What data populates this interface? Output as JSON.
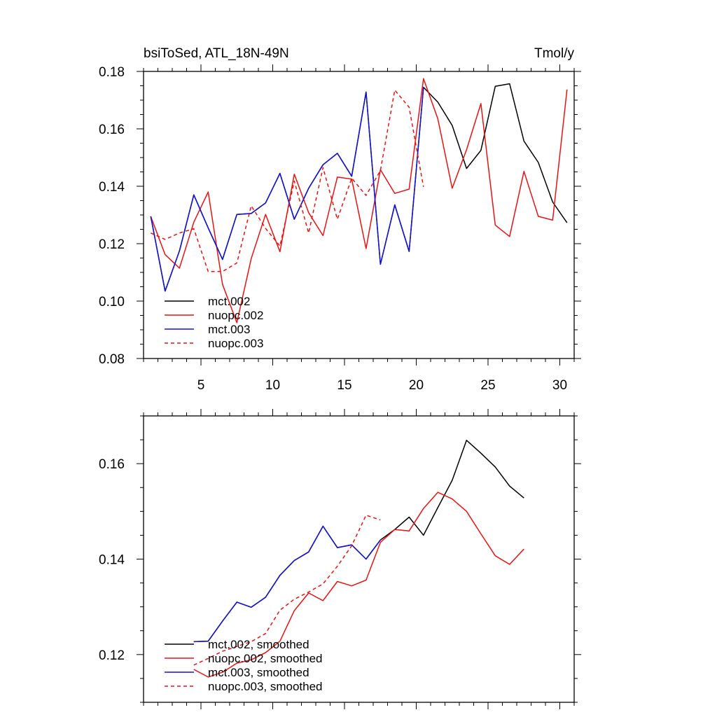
{
  "title_left": "bsiToSed, ATL_18N-49N",
  "title_right": "Tmol/y",
  "chart_data": [
    {
      "type": "line",
      "xlim": [
        1,
        31
      ],
      "ylim": [
        0.08,
        0.18
      ],
      "x_ticks": [
        5,
        10,
        15,
        20,
        25,
        30
      ],
      "x_tick_labels": [
        "5",
        "10",
        "15",
        "20",
        "25",
        "30"
      ],
      "y_ticks": [
        0.08,
        0.1,
        0.12,
        0.14,
        0.16,
        0.18
      ],
      "y_tick_labels": [
        "0.08",
        "0.10",
        "0.12",
        "0.14",
        "0.16",
        "0.18"
      ],
      "legend": "lower-left",
      "series": [
        {
          "name": "mct.002",
          "color": "#000000",
          "dash": "solid",
          "x": [
            1.5,
            2.5,
            3.5,
            4.5,
            5.5,
            6.5,
            7.5,
            8.5,
            9.5,
            10.5,
            11.5,
            12.5,
            13.5,
            14.5,
            15.5,
            16.5,
            17.5,
            18.5,
            19.5,
            20.5,
            21.5,
            22.5,
            23.5,
            24.5,
            25.5,
            26.5,
            27.5,
            28.5,
            29.5,
            30.5
          ],
          "y": [
            0.1295,
            0.1035,
            0.1175,
            0.137,
            0.1255,
            0.1145,
            0.1302,
            0.1305,
            0.1342,
            0.1445,
            0.1285,
            0.1393,
            0.1475,
            0.1515,
            0.1435,
            0.1728,
            0.1128,
            0.1335,
            0.1173,
            0.1745,
            0.1693,
            0.1612,
            0.1462,
            0.1525,
            0.1748,
            0.1757,
            0.1557,
            0.1483,
            0.1345,
            0.1273
          ]
        },
        {
          "name": "nuopc.002",
          "color": "#ee1111",
          "dash": "solid",
          "x": [
            1.5,
            2.5,
            3.5,
            4.5,
            5.5,
            6.5,
            7.5,
            8.5,
            9.5,
            10.5,
            11.5,
            12.5,
            13.5,
            14.5,
            15.5,
            16.5,
            17.5,
            18.5,
            19.5,
            20.5,
            21.5,
            22.5,
            23.5,
            24.5,
            25.5,
            26.5,
            27.5,
            28.5,
            29.5,
            30.5
          ],
          "y": [
            0.1295,
            0.1162,
            0.1115,
            0.1275,
            0.138,
            0.1058,
            0.0925,
            0.1148,
            0.1302,
            0.1172,
            0.1442,
            0.1308,
            0.1228,
            0.1432,
            0.1425,
            0.1183,
            0.1458,
            0.1375,
            0.139,
            0.1775,
            0.1635,
            0.1393,
            0.1527,
            0.1688,
            0.1265,
            0.1225,
            0.1452,
            0.1295,
            0.1282,
            0.1737
          ]
        },
        {
          "name": "mct.003",
          "color": "#1111dd",
          "dash": "solid",
          "x": [
            1.5,
            2.5,
            3.5,
            4.5,
            5.5,
            6.5,
            7.5,
            8.5,
            9.5,
            10.5,
            11.5,
            12.5,
            13.5,
            14.5,
            15.5,
            16.5,
            17.5,
            18.5,
            19.5,
            20.5
          ],
          "y": [
            0.1295,
            0.1035,
            0.1175,
            0.137,
            0.1255,
            0.1145,
            0.1302,
            0.1305,
            0.1342,
            0.1445,
            0.1285,
            0.1393,
            0.1475,
            0.1515,
            0.1435,
            0.1728,
            0.1128,
            0.1335,
            0.1173,
            0.1745
          ]
        },
        {
          "name": "nuopc.003",
          "color": "#ee1111",
          "dash": "dashed",
          "x": [
            1.5,
            2.5,
            3.5,
            4.5,
            5.5,
            6.5,
            7.5,
            8.5,
            9.5,
            10.5,
            11.5,
            12.5,
            13.5,
            14.5,
            15.5,
            16.5,
            17.5,
            18.5,
            19.5,
            20.5
          ],
          "y": [
            0.1237,
            0.1215,
            0.1237,
            0.1252,
            0.1103,
            0.1103,
            0.1133,
            0.1332,
            0.1253,
            0.1192,
            0.1418,
            0.1237,
            0.1465,
            0.1285,
            0.1428,
            0.1368,
            0.1455,
            0.1735,
            0.1675,
            0.1398
          ]
        }
      ]
    },
    {
      "type": "line",
      "xlim": [
        1,
        31
      ],
      "ylim": [
        0.11,
        0.17
      ],
      "x_ticks": [
        5,
        10,
        15,
        20,
        25,
        30
      ],
      "x_tick_labels": [],
      "y_ticks": [
        0.12,
        0.14,
        0.16
      ],
      "y_tick_labels": [
        "0.12",
        "0.14",
        "0.16"
      ],
      "legend": "lower-left",
      "series": [
        {
          "name": "mct.002, smoothed",
          "color": "#000000",
          "dash": "solid",
          "x": [
            4.5,
            5.5,
            6.5,
            7.5,
            8.5,
            9.5,
            10.5,
            11.5,
            12.5,
            13.5,
            14.5,
            15.5,
            16.5,
            17.5,
            18.5,
            19.5,
            20.5,
            21.5,
            22.5,
            23.5,
            24.5,
            25.5,
            26.5,
            27.5
          ],
          "y": [
            0.1227,
            0.1228,
            0.127,
            0.131,
            0.1299,
            0.132,
            0.1366,
            0.1397,
            0.1415,
            0.1469,
            0.1424,
            0.143,
            0.14,
            0.144,
            0.1462,
            0.1488,
            0.145,
            0.1508,
            0.1565,
            0.1649,
            0.1622,
            0.1593,
            0.1553,
            0.1528
          ]
        },
        {
          "name": "nuopc.002, smoothed",
          "color": "#ee1111",
          "dash": "solid",
          "x": [
            4.5,
            5.5,
            6.5,
            7.5,
            8.5,
            9.5,
            10.5,
            11.5,
            12.5,
            13.5,
            14.5,
            15.5,
            16.5,
            17.5,
            18.5,
            19.5,
            20.5,
            21.5,
            22.5,
            23.5,
            24.5,
            25.5,
            26.5,
            27.5
          ],
          "y": [
            0.1169,
            0.1153,
            0.1163,
            0.1182,
            0.1189,
            0.1204,
            0.1228,
            0.1292,
            0.1329,
            0.1313,
            0.1353,
            0.1344,
            0.1356,
            0.1435,
            0.1462,
            0.1459,
            0.1506,
            0.154,
            0.1526,
            0.15,
            0.1453,
            0.1407,
            0.1389,
            0.1421
          ]
        },
        {
          "name": "mct.003, smoothed",
          "color": "#1111dd",
          "dash": "solid",
          "x": [
            4.5,
            5.5,
            6.5,
            7.5,
            8.5,
            9.5,
            10.5,
            11.5,
            12.5,
            13.5,
            14.5,
            15.5,
            16.5,
            17.5
          ],
          "y": [
            0.1227,
            0.1228,
            0.127,
            0.131,
            0.1299,
            0.132,
            0.1366,
            0.1397,
            0.1415,
            0.1469,
            0.1424,
            0.143,
            0.14,
            0.144
          ]
        },
        {
          "name": "nuopc.003, smoothed",
          "color": "#ee1111",
          "dash": "dashed",
          "x": [
            4.5,
            5.5,
            6.5,
            7.5,
            8.5,
            9.5,
            10.5,
            11.5,
            12.5,
            13.5,
            14.5,
            15.5,
            16.5,
            17.5
          ],
          "y": [
            0.1178,
            0.1192,
            0.1207,
            0.1217,
            0.1227,
            0.1244,
            0.1293,
            0.1316,
            0.1331,
            0.1348,
            0.1385,
            0.1428,
            0.1492,
            0.1482
          ]
        }
      ]
    }
  ]
}
